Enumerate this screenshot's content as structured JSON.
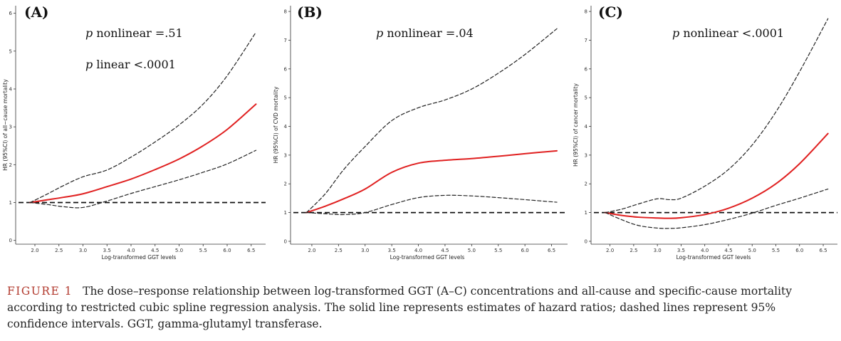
{
  "caption": {
    "label": "FIGURE 1",
    "text": "The dose–response relationship between log-transformed GGT (A–C) concentrations and all-cause and specific-cause mortality according to restricted cubic spline regression analysis. The solid line represents estimates of hazard ratios; dashed lines represent 95% confidence intervals. GGT, gamma-glutamyl transferase."
  },
  "colors": {
    "estimate": "#e02020",
    "ci": "#222222",
    "reference": "#111111",
    "axis": "#333333"
  },
  "chart_data": [
    {
      "type": "line",
      "panel": "(A)",
      "annotations": [
        "p nonlinear =.51",
        "p linear <.0001"
      ],
      "xlabel": "Log-transformed GGT levels",
      "ylabel": "HR (95%CI) of all−cause mortality",
      "xlim": [
        1.6,
        6.8
      ],
      "ylim": [
        -0.1,
        6.2
      ],
      "xticks": [
        2.0,
        2.5,
        3.0,
        3.5,
        4.0,
        4.5,
        5.0,
        5.5,
        6.0,
        6.5
      ],
      "xtick_labels": [
        "2.0",
        "2.5",
        "3.0",
        "3.5",
        "4.0",
        "4.5",
        "5.0",
        "5.5",
        "6.0",
        "6.5"
      ],
      "yticks": [
        0,
        1,
        2,
        3,
        4,
        5,
        6
      ],
      "ytick_labels": [
        "0",
        "1",
        "2",
        "3",
        "4",
        "5",
        "6"
      ],
      "reference": 1,
      "series": [
        {
          "role": "estimate",
          "x": [
            1.9,
            2.25,
            2.6,
            3.0,
            3.5,
            4.0,
            4.5,
            5.0,
            5.5,
            6.0,
            6.6
          ],
          "y": [
            1.0,
            1.07,
            1.14,
            1.23,
            1.42,
            1.62,
            1.87,
            2.15,
            2.5,
            2.93,
            3.6
          ]
        },
        {
          "role": "ci-upper",
          "x": [
            1.9,
            2.25,
            2.6,
            3.0,
            3.5,
            4.0,
            4.5,
            5.0,
            5.5,
            6.0,
            6.6
          ],
          "y": [
            1.0,
            1.22,
            1.45,
            1.68,
            1.86,
            2.2,
            2.6,
            3.05,
            3.6,
            4.35,
            5.5
          ]
        },
        {
          "role": "ci-lower",
          "x": [
            1.9,
            2.25,
            2.6,
            3.0,
            3.5,
            4.0,
            4.5,
            5.0,
            5.5,
            6.0,
            6.6
          ],
          "y": [
            1.0,
            0.95,
            0.89,
            0.87,
            1.04,
            1.24,
            1.42,
            1.6,
            1.8,
            2.02,
            2.38
          ]
        }
      ]
    },
    {
      "type": "line",
      "panel": "(B)",
      "annotations": [
        "p nonlinear =.04"
      ],
      "xlabel": "Log-transformed GGT levels",
      "ylabel": "HR (95%CI) of CVD mortality",
      "xlim": [
        1.6,
        6.8
      ],
      "ylim": [
        -0.1,
        8.2
      ],
      "xticks": [
        2.0,
        2.5,
        3.0,
        3.5,
        4.0,
        4.5,
        5.0,
        5.5,
        6.0,
        6.5
      ],
      "xtick_labels": [
        "2.0",
        "2.5",
        "3.0",
        "3.5",
        "4.0",
        "4.5",
        "5.0",
        "5.5",
        "6.0",
        "6.5"
      ],
      "yticks": [
        0,
        1,
        2,
        3,
        4,
        5,
        6,
        7,
        8
      ],
      "ytick_labels": [
        "0",
        "1",
        "2",
        "3",
        "4",
        "5",
        "6",
        "7",
        "8"
      ],
      "reference": 1,
      "series": [
        {
          "role": "estimate",
          "x": [
            1.9,
            2.25,
            2.6,
            3.0,
            3.5,
            4.0,
            4.5,
            5.0,
            5.5,
            6.0,
            6.6
          ],
          "y": [
            1.0,
            1.22,
            1.48,
            1.82,
            2.4,
            2.72,
            2.82,
            2.88,
            2.96,
            3.05,
            3.15
          ]
        },
        {
          "role": "ci-upper",
          "x": [
            1.9,
            2.25,
            2.6,
            3.0,
            3.5,
            4.0,
            4.5,
            5.0,
            5.5,
            6.0,
            6.6
          ],
          "y": [
            1.0,
            1.65,
            2.5,
            3.3,
            4.2,
            4.65,
            4.92,
            5.3,
            5.85,
            6.5,
            7.4
          ]
        },
        {
          "role": "ci-lower",
          "x": [
            1.9,
            2.25,
            2.6,
            3.0,
            3.5,
            4.0,
            4.5,
            5.0,
            5.5,
            6.0,
            6.6
          ],
          "y": [
            1.0,
            0.96,
            0.93,
            1.0,
            1.28,
            1.52,
            1.6,
            1.58,
            1.52,
            1.45,
            1.36
          ]
        }
      ]
    },
    {
      "type": "line",
      "panel": "(C)",
      "annotations": [
        "p nonlinear <.0001"
      ],
      "xlabel": "Log-transformed GGT levels",
      "ylabel": "HR (95%CI) of cancer mortality",
      "xlim": [
        1.6,
        6.8
      ],
      "ylim": [
        -0.1,
        8.2
      ],
      "xticks": [
        2.0,
        2.5,
        3.0,
        3.5,
        4.0,
        4.5,
        5.0,
        5.5,
        6.0,
        6.5
      ],
      "xtick_labels": [
        "2.0",
        "2.5",
        "3.0",
        "3.5",
        "4.0",
        "4.5",
        "5.0",
        "5.5",
        "6.0",
        "6.5"
      ],
      "yticks": [
        0,
        1,
        2,
        3,
        4,
        5,
        6,
        7,
        8
      ],
      "ytick_labels": [
        "0",
        "1",
        "2",
        "3",
        "4",
        "5",
        "6",
        "7",
        "8"
      ],
      "reference": 1,
      "series": [
        {
          "role": "estimate",
          "x": [
            1.9,
            2.25,
            2.6,
            3.0,
            3.25,
            3.5,
            4.0,
            4.5,
            5.0,
            5.5,
            6.0,
            6.6
          ],
          "y": [
            1.0,
            0.9,
            0.84,
            0.81,
            0.8,
            0.82,
            0.93,
            1.15,
            1.5,
            2.0,
            2.7,
            3.75
          ]
        },
        {
          "role": "ci-upper",
          "x": [
            1.9,
            2.25,
            2.6,
            3.0,
            3.25,
            3.5,
            4.0,
            4.5,
            5.0,
            5.5,
            6.0,
            6.6
          ],
          "y": [
            1.0,
            1.12,
            1.3,
            1.48,
            1.45,
            1.5,
            1.92,
            2.5,
            3.35,
            4.5,
            5.9,
            7.75
          ]
        },
        {
          "role": "ci-lower",
          "x": [
            1.9,
            2.25,
            2.6,
            3.0,
            3.25,
            3.5,
            4.0,
            4.5,
            5.0,
            5.5,
            6.0,
            6.6
          ],
          "y": [
            1.0,
            0.75,
            0.55,
            0.46,
            0.45,
            0.47,
            0.58,
            0.76,
            0.98,
            1.25,
            1.5,
            1.82
          ]
        }
      ]
    }
  ]
}
